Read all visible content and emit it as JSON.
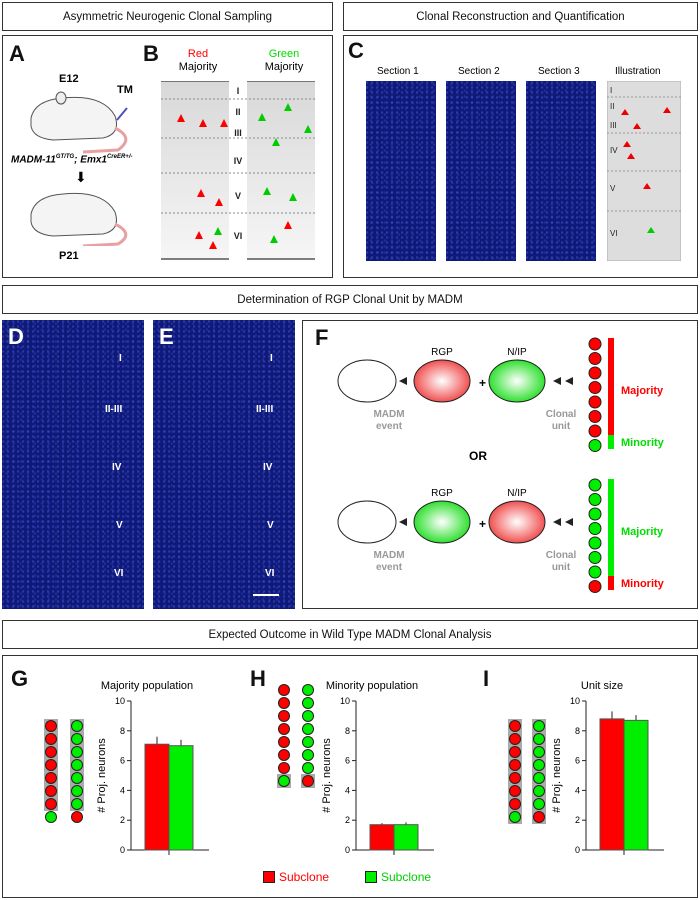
{
  "headers": {
    "top_left": "Asymmetric Neurogenic Clonal Sampling",
    "top_right": "Clonal Reconstruction and Quantification",
    "middle": "Determination of RGP Clonal Unit by MADM",
    "bottom": "Expected Outcome in Wild Type MADM Clonal Analysis"
  },
  "panel_labels": {
    "a": "A",
    "b": "B",
    "c": "C",
    "d": "D",
    "e": "E",
    "f": "F",
    "g": "G",
    "h": "H",
    "i": "I"
  },
  "panel_a": {
    "age1": "E12",
    "injection": "TM",
    "genotype": "MADM-11",
    "genotype_sup": "GT/TG",
    "genotype2": "; Emx1",
    "genotype2_sup": "CreER+/-",
    "age2": "P21"
  },
  "panel_b": {
    "red_title": "Red",
    "green_title": "Green",
    "majority": "Majority",
    "layers": [
      "I",
      "II",
      "III",
      "IV",
      "V",
      "VI"
    ]
  },
  "panel_c": {
    "sections": [
      "Section 1",
      "Section 2",
      "Section 3",
      "Illustration"
    ],
    "layers": [
      "I",
      "II",
      "III",
      "IV",
      "V",
      "VI"
    ]
  },
  "panel_de": {
    "layers": [
      "I",
      "II-III",
      "IV",
      "V",
      "VI"
    ]
  },
  "panel_f": {
    "rgp": "RGP",
    "nip": "N/IP",
    "madm1": "MADM",
    "madm2": "event",
    "clonal1": "Clonal",
    "clonal2": "unit",
    "majority": "Majority",
    "minority": "Minority",
    "or": "OR"
  },
  "legend": {
    "red": "Subclone",
    "green": "Subclone"
  },
  "colors": {
    "red": "#ff0000",
    "green": "#00ee00"
  },
  "chart_data": [
    {
      "type": "bar",
      "title": "Majority population",
      "ylabel": "# Proj. neurons",
      "ylim": [
        0,
        10
      ],
      "yticks": [
        0,
        2,
        4,
        6,
        8,
        10
      ],
      "series": [
        {
          "name": "Red Subclone",
          "value": 7.1,
          "error": 0.5
        },
        {
          "name": "Green Subclone",
          "value": 7.0,
          "error": 0.4
        }
      ]
    },
    {
      "type": "bar",
      "title": "Minority population",
      "ylabel": "# Proj. neurons",
      "ylim": [
        0,
        10
      ],
      "yticks": [
        0,
        2,
        4,
        6,
        8,
        10
      ],
      "series": [
        {
          "name": "Red Subclone",
          "value": 1.7,
          "error": 0.1
        },
        {
          "name": "Green Subclone",
          "value": 1.7,
          "error": 0.15
        }
      ]
    },
    {
      "type": "bar",
      "title": "Unit size",
      "ylabel": "# Proj. neurons",
      "ylim": [
        0,
        10
      ],
      "yticks": [
        0,
        2,
        4,
        6,
        8,
        10
      ],
      "series": [
        {
          "name": "Red Subclone",
          "value": 8.8,
          "error": 0.5
        },
        {
          "name": "Green Subclone",
          "value": 8.7,
          "error": 0.35
        }
      ]
    }
  ]
}
